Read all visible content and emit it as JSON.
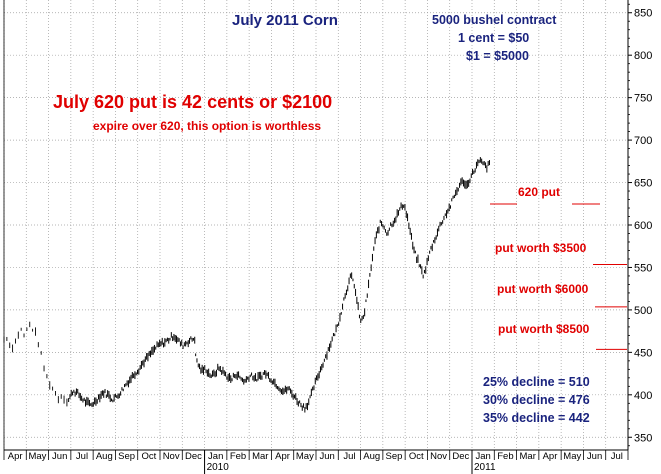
{
  "chart_data": {
    "type": "line",
    "title": "July 2011 Corn",
    "contract_info": [
      "5000 bushel contract",
      "1 cent = $50",
      "$1 = $5000"
    ],
    "headline": "July 620 put is 42 cents or $2100",
    "subheadline": "expire over 620, this option is worthless",
    "ylim": [
      335,
      865
    ],
    "y_ticks": [
      350,
      400,
      450,
      500,
      550,
      600,
      650,
      700,
      750,
      800,
      850
    ],
    "grid": true,
    "x_months": [
      "Apr",
      "May",
      "Jun",
      "Jul",
      "Aug",
      "Sep",
      "Oct",
      "Nov",
      "Dec",
      "Jan",
      "Feb",
      "Mar",
      "Apr",
      "May",
      "Jun",
      "Jul",
      "Aug",
      "Sep",
      "Oct",
      "Nov",
      "Dec",
      "Jan",
      "Feb",
      "Mar",
      "Apr",
      "May",
      "Jun",
      "Jul"
    ],
    "x_years": [
      {
        "label": "2010",
        "month_index": 9
      },
      {
        "label": "2011",
        "month_index": 21
      }
    ],
    "series": [
      {
        "segments": [
          {
            "start": 0.0,
            "end": 2.9,
            "dashed": true,
            "values": [
              465,
              470,
              462,
              455,
              458,
              463,
              470,
              478,
              474,
              468,
              477,
              483,
              480,
              475,
              470,
              460,
              448,
              435,
              425,
              418,
              412,
              408,
              403,
              398,
              395,
              400,
              397,
              392,
              394
            ]
          },
          {
            "start": 2.9,
            "end": 8.6,
            "dashed": false,
            "values": [
              394,
              405,
              402,
              396,
              391,
              388,
              392,
              398,
              403,
              400,
              395,
              398,
              404,
              412,
              418,
              425,
              430,
              438,
              444,
              450,
              456,
              460,
              462,
              466,
              470,
              464,
              458,
              462,
              465,
              467
            ]
          },
          {
            "start": 8.6,
            "end": 21.8,
            "dashed": false,
            "values": [
              445,
              433,
              428,
              431,
              425,
              422,
              426,
              432,
              428,
              424,
              420,
              418,
              425,
              422,
              418,
              416,
              421,
              424,
              418,
              420,
              423,
              426,
              422,
              418,
              414,
              410,
              406,
              404,
              408,
              402,
              398,
              392,
              388,
              385,
              390,
              400,
              412,
              422,
              432,
              442,
              452,
              462,
              472,
              482,
              498,
              515,
              528,
              540,
              530,
              505,
              485,
              495,
              520,
              548,
              575,
              592,
              603,
              598,
              590,
              600,
              605,
              612,
              620,
              625,
              610,
              590,
              570,
              560,
              550,
              540,
              555,
              570,
              580,
              590,
              600,
              608,
              615,
              622,
              632,
              640,
              648,
              652,
              645,
              655,
              662,
              670,
              675,
              672,
              668,
              672
            ]
          }
        ]
      }
    ],
    "annotations": [
      {
        "text": "620 put",
        "y": 620
      },
      {
        "text": "put worth $3500",
        "y": 550
      },
      {
        "text": "put worth $6000",
        "y": 500
      },
      {
        "text": "put worth $8500",
        "y": 450
      }
    ],
    "declines": [
      "25% decline = 510",
      "30% decline = 476",
      "35% decline = 442"
    ],
    "colors": {
      "bars": "#000000",
      "grid": "#9e9e9e",
      "navy": "#1a237e",
      "red": "#e00000"
    }
  }
}
